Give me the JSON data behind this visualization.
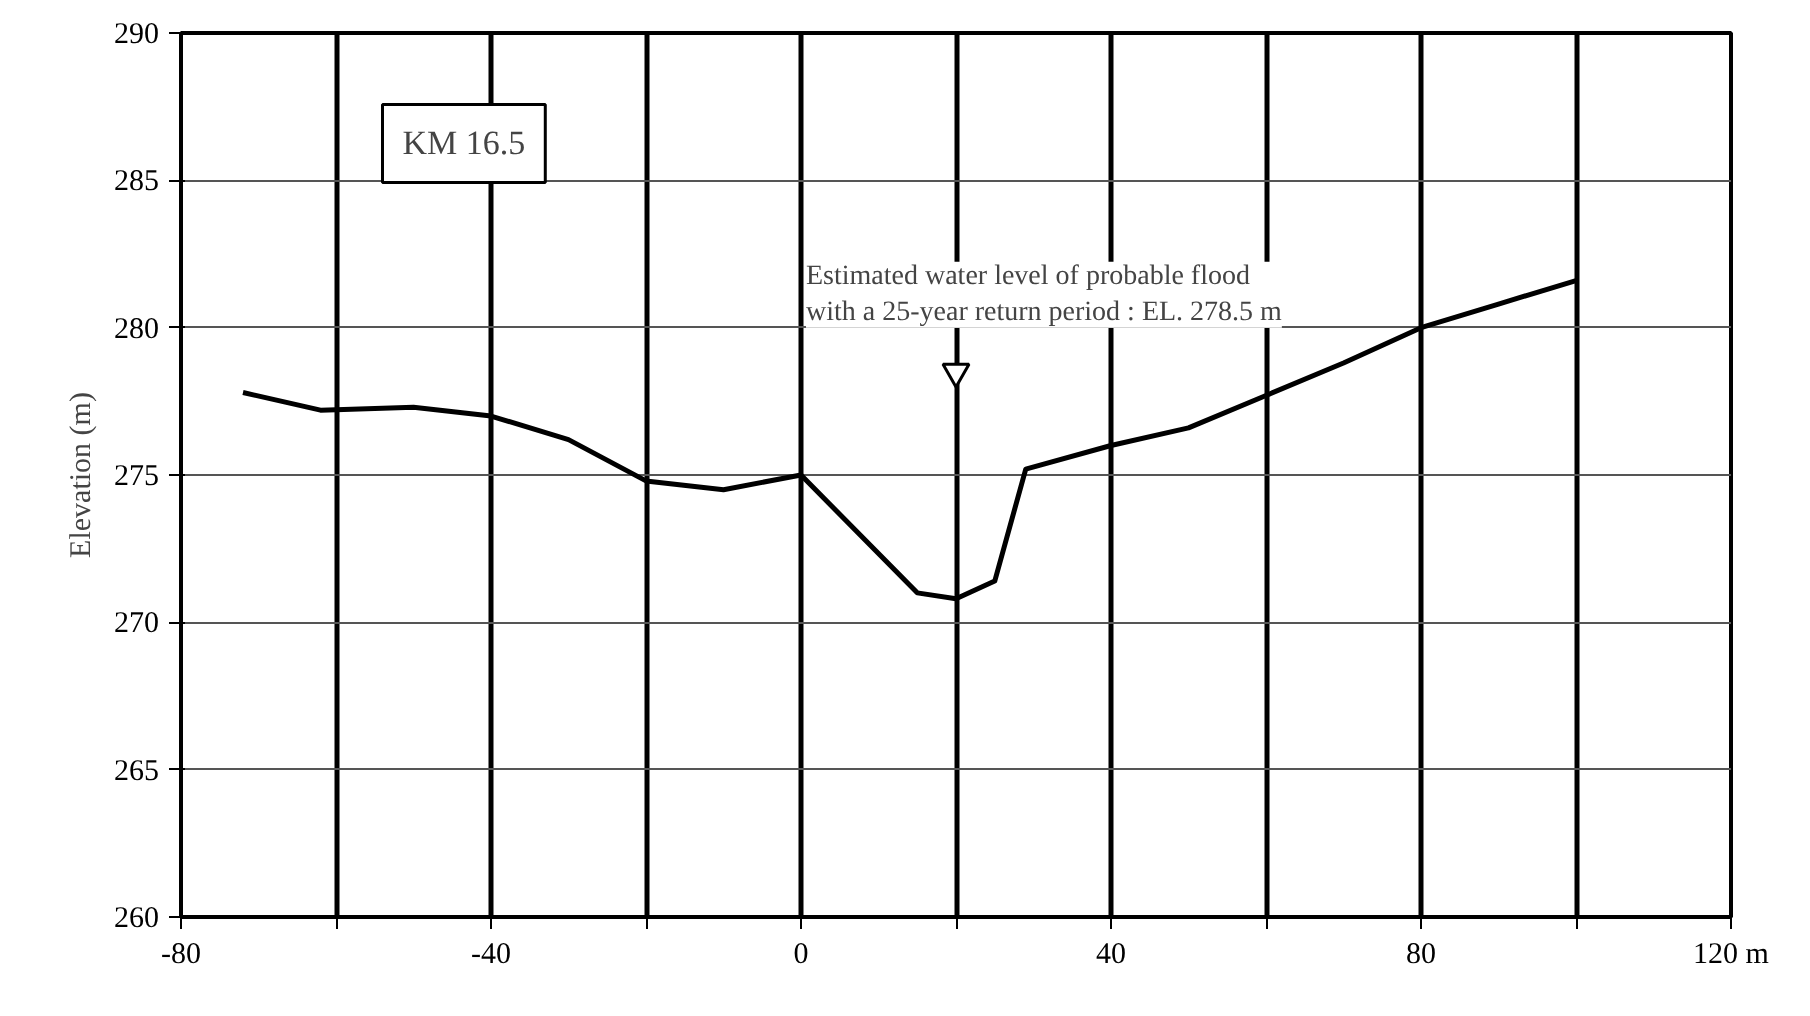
{
  "chart_data": {
    "type": "line",
    "ylabel": "Elevation (m)",
    "x": [
      -72,
      -62,
      -50,
      -40,
      -30,
      -20,
      -10,
      0,
      15,
      20,
      25,
      29,
      40,
      50,
      60,
      70,
      80,
      90,
      100
    ],
    "series": [
      {
        "color": "#000000",
        "values": [
          277.8,
          277.2,
          277.3,
          277.0,
          276.2,
          274.8,
          274.5,
          275.0,
          271.0,
          270.8,
          271.4,
          275.2,
          276.0,
          276.6,
          277.7,
          278.8,
          280.0,
          280.8,
          281.6
        ]
      }
    ],
    "xlim": [
      -80,
      120
    ],
    "ylim": [
      260,
      290
    ],
    "xticks": [
      -80,
      {
        "value": -60,
        "label": null
      },
      -40,
      {
        "value": -20,
        "label": null
      },
      0,
      {
        "value": 20,
        "label": null
      },
      40,
      {
        "value": 60,
        "label": null
      },
      80,
      {
        "value": 100,
        "label": null
      },
      {
        "value": 120,
        "label": "120 m"
      }
    ],
    "yticks": [
      260,
      265,
      270,
      275,
      280,
      285,
      290
    ],
    "annotations": [
      "KM 16.5",
      {
        "text": "Estimated water level of probable flood\nwith a 25-year return period : EL. 278.5 m",
        "x": 20,
        "y": 278.5
      }
    ],
    "grid": true,
    "marker": "none",
    "line_style": "solid"
  }
}
